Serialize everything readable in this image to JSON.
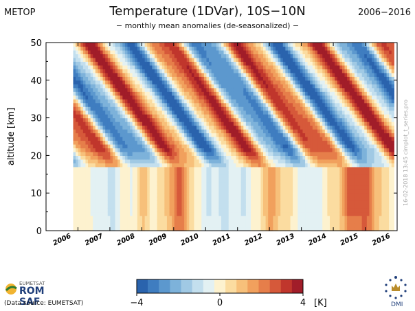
{
  "header": {
    "left": "METOP",
    "title": "Temperature (1DVar), 10S−10N",
    "subtitle": "− monthly mean anomalies (de-seasonalized) −",
    "right": "2006−2016"
  },
  "side_stamp": "16-02-2018 13:45    cimplot_t_series.pro",
  "footer": {
    "logo_top": "EUMETSAT",
    "logo_text": "ROM SAF",
    "source": "(Data source: EUMETSAT)",
    "dmi_label": "DMI"
  },
  "chart_data": {
    "type": "heatmap",
    "title": "Temperature (1DVar), 10S−10N",
    "subtitle": "− monthly mean anomalies (de-seasonalized) −",
    "ylabel": "altitude [km]",
    "xlabel": "",
    "ylim": [
      0,
      50
    ],
    "yticks": [
      0,
      10,
      20,
      30,
      40,
      50
    ],
    "xticks": [
      "2006",
      "2007",
      "2008",
      "2009",
      "2010",
      "2011",
      "2012",
      "2013",
      "2014",
      "2015",
      "2016"
    ],
    "x_start": 2006.0,
    "x_end": 2017.0,
    "data_start": 2006.85,
    "data_end": 2016.9,
    "colorbar": {
      "min": -4,
      "max": 4,
      "ticks": [
        "−4",
        "0",
        "4"
      ],
      "unit": "[K]",
      "colors": [
        "#2a63ad",
        "#3f7dc0",
        "#5c98ce",
        "#7db2da",
        "#a0c9e4",
        "#c3dfee",
        "#e3f1f3",
        "#fdf2cf",
        "#fbdca0",
        "#f7c07a",
        "#f1a05d",
        "#e67e4a",
        "#d6593a",
        "#c0362c",
        "#a11d29"
      ]
    },
    "field_description": {
      "tropopause_km": 17,
      "upper_pattern": "descending alternating warm/cold bands (QBO), amplitude up to 4 K",
      "lower_pattern": "weak anomalies below ~16 km, warm episodes near 2010, 2013 and 2016"
    }
  }
}
